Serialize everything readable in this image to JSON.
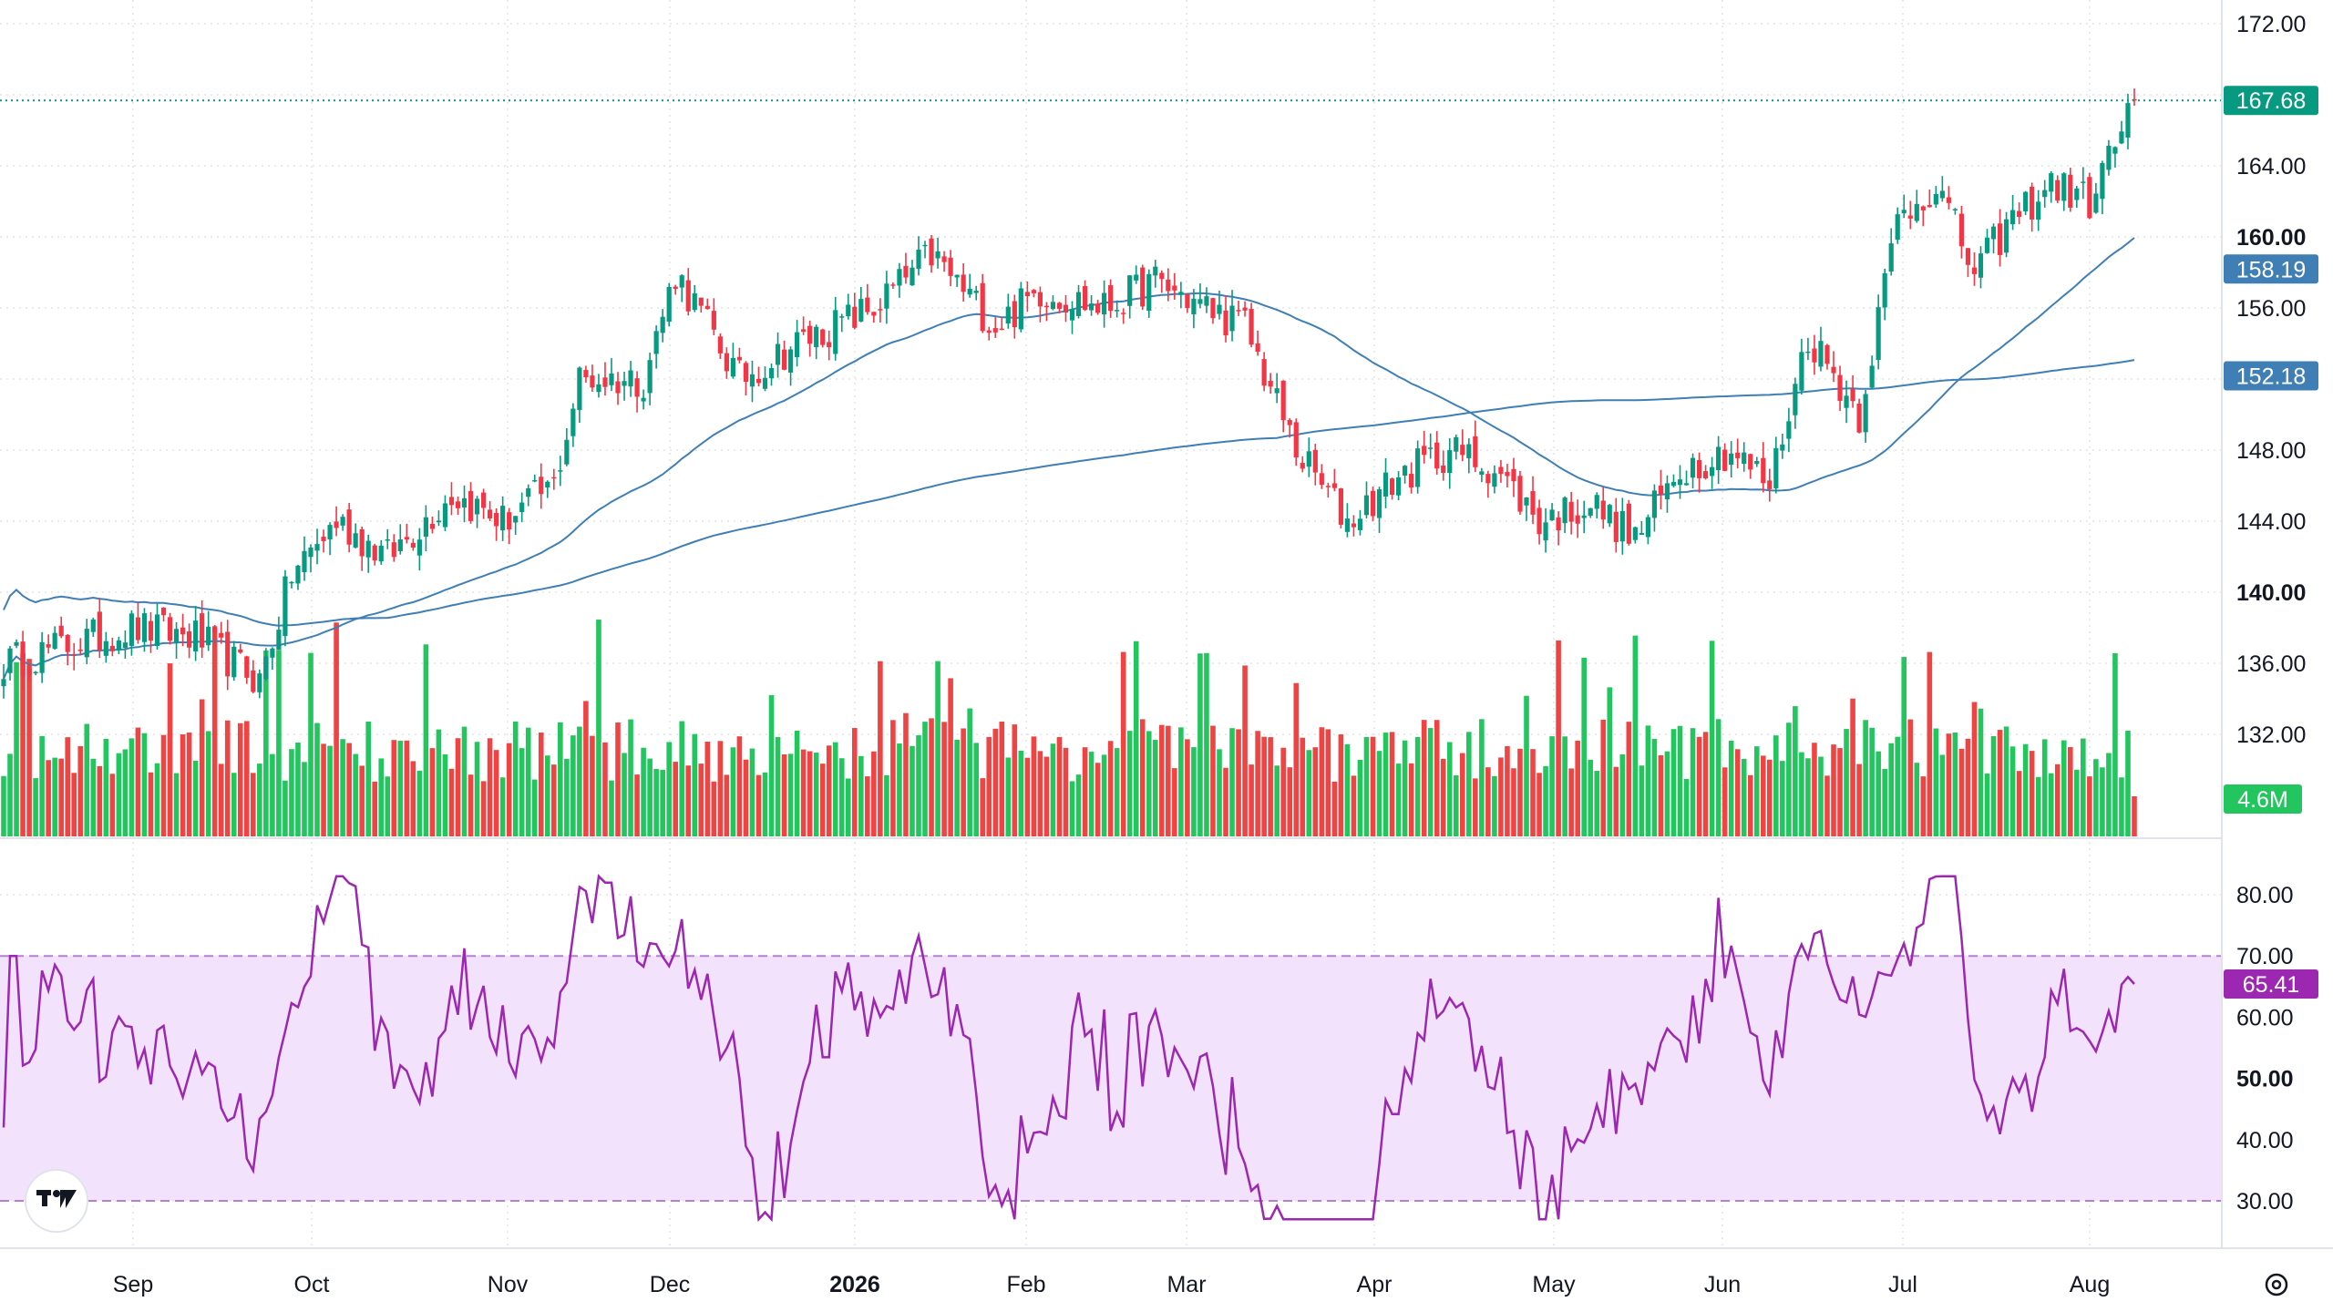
{
  "chart_data": {
    "type": "candlestick",
    "x_axis_labels": [
      "Sep",
      "Oct",
      "Nov",
      "Dec",
      "2026",
      "Feb",
      "Mar",
      "Apr",
      "May",
      "Jun",
      "Jul",
      "Aug"
    ],
    "price_axis": {
      "ylim": [
        128.5,
        172
      ],
      "ticks": [
        "172.00",
        "164.00",
        "160.00",
        "156.00",
        "152.00",
        "148.00",
        "144.00",
        "140.00",
        "136.00",
        "132.00"
      ],
      "bold_ticks": [
        "160.00",
        "140.00"
      ],
      "current_price": "167.68",
      "moving_averages": [
        {
          "value": "158.19",
          "color": "#3f7fb5"
        },
        {
          "value": "152.18",
          "color": "#3f7fb5"
        }
      ]
    },
    "volume": {
      "last_label": "4.6M"
    },
    "rsi": {
      "ylim": [
        25,
        85
      ],
      "ticks": [
        "80.00",
        "70.00",
        "60.00",
        "50.00",
        "40.00",
        "30.00"
      ],
      "bold_ticks": [
        "50.00"
      ],
      "upper_band": 70,
      "lower_band": 30,
      "current_value": "65.41",
      "color": "#9c27b0"
    },
    "anchors": [
      [
        0,
        136
      ],
      [
        10,
        137
      ],
      [
        20,
        138
      ],
      [
        30,
        137.5
      ],
      [
        40,
        135
      ],
      [
        45,
        141
      ],
      [
        52,
        144
      ],
      [
        60,
        142
      ],
      [
        70,
        145.5
      ],
      [
        78,
        144
      ],
      [
        86,
        146
      ],
      [
        90,
        152
      ],
      [
        100,
        152
      ],
      [
        105,
        158
      ],
      [
        115,
        152
      ],
      [
        124,
        154
      ],
      [
        130,
        155
      ],
      [
        136,
        156
      ],
      [
        145,
        159
      ],
      [
        155,
        155
      ],
      [
        162,
        157
      ],
      [
        172,
        156
      ],
      [
        180,
        157.5
      ],
      [
        188,
        156
      ],
      [
        194,
        155
      ],
      [
        202,
        148
      ],
      [
        210,
        144
      ],
      [
        218,
        146.5
      ],
      [
        226,
        148
      ],
      [
        233,
        147
      ],
      [
        240,
        144
      ],
      [
        248,
        145
      ],
      [
        255,
        143
      ],
      [
        262,
        147
      ],
      [
        270,
        148
      ],
      [
        276,
        146
      ],
      [
        282,
        154.5
      ],
      [
        290,
        150
      ],
      [
        296,
        161
      ],
      [
        302,
        163
      ],
      [
        308,
        158
      ],
      [
        314,
        161
      ],
      [
        320,
        163
      ],
      [
        326,
        162
      ],
      [
        333,
        167.68
      ]
    ],
    "colors": {
      "up": "#089981",
      "down": "#f23645",
      "vol_up": "#22c55e",
      "vol_down": "#ef4444"
    }
  }
}
